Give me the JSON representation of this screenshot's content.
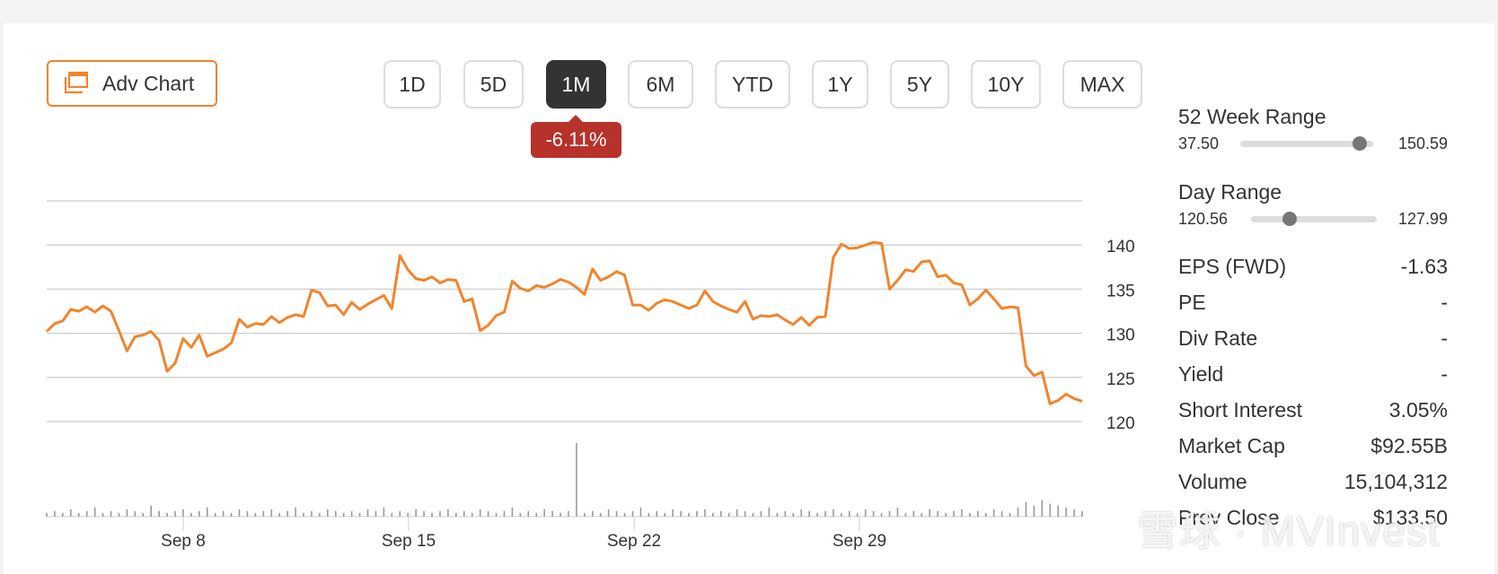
{
  "toolbar": {
    "adv_chart_label": "Adv Chart",
    "ranges": [
      "1D",
      "5D",
      "1M",
      "6M",
      "YTD",
      "1Y",
      "5Y",
      "10Y",
      "MAX"
    ],
    "active_range": "1M",
    "change_badge": "-6.11%"
  },
  "colors": {
    "accent": "#f0852d",
    "line": "#f0852d",
    "negative": "#b7322a",
    "active_button": "#333333",
    "grid": "#d3d3d3",
    "volume": "#9a9a9a"
  },
  "chart_data": {
    "type": "line",
    "title": "",
    "x_tick_labels": [
      "Sep 8",
      "Sep 15",
      "Sep 22",
      "Sep 29"
    ],
    "y_tick_labels": [
      "140",
      "135",
      "130",
      "125",
      "120"
    ],
    "ylim": [
      120,
      145
    ],
    "grid": true,
    "y_axis_position": "right",
    "series": [
      {
        "values": [
          130.2,
          131.1,
          131.4,
          132.7,
          132.5,
          133.0,
          132.4,
          133.1,
          132.5,
          130.3,
          128.0,
          129.6,
          129.8,
          130.2,
          129.2,
          125.7,
          126.6,
          129.4,
          128.4,
          129.8,
          127.4,
          127.8,
          128.2,
          128.9,
          131.6,
          130.7,
          131.1,
          131.0,
          131.9,
          131.2,
          131.8,
          132.1,
          131.9,
          134.9,
          134.6,
          133.1,
          133.2,
          132.1,
          133.5,
          132.7,
          133.3,
          133.8,
          134.3,
          132.8,
          138.8,
          137.2,
          136.2,
          136.0,
          136.4,
          135.7,
          136.1,
          136.0,
          133.6,
          133.9,
          130.3,
          130.9,
          132.0,
          132.4,
          135.9,
          135.1,
          134.8,
          135.4,
          135.2,
          135.6,
          136.1,
          135.8,
          135.2,
          134.4,
          137.3,
          136.0,
          136.4,
          137.0,
          136.6,
          133.2,
          133.2,
          132.6,
          133.4,
          133.8,
          133.6,
          133.2,
          132.8,
          133.2,
          134.8,
          133.6,
          133.1,
          132.7,
          132.4,
          133.6,
          131.6,
          132.0,
          131.9,
          132.1,
          131.5,
          131.0,
          131.8,
          130.9,
          131.8,
          131.9,
          138.6,
          140.1,
          139.6,
          139.7,
          140.0,
          140.3,
          140.2,
          135.0,
          136.0,
          137.2,
          137.0,
          138.1,
          138.2,
          136.4,
          136.6,
          135.7,
          135.5,
          133.2,
          133.9,
          134.9,
          133.9,
          132.8,
          133.0,
          132.9,
          126.3,
          125.2,
          125.6,
          122.0,
          122.4,
          123.1,
          122.6,
          122.3
        ]
      }
    ],
    "volume": {
      "spike_label_date": "Sep 22",
      "values": [
        2,
        3,
        2,
        4,
        2,
        3,
        5,
        2,
        3,
        2,
        4,
        3,
        2,
        6,
        3,
        2,
        3,
        4,
        2,
        3,
        5,
        2,
        3,
        2,
        4,
        3,
        2,
        3,
        4,
        2,
        3,
        5,
        2,
        3,
        2,
        4,
        3,
        2,
        3,
        2,
        4,
        3,
        5,
        2,
        3,
        2,
        4,
        3,
        2,
        3,
        4,
        2,
        3,
        2,
        4,
        3,
        2,
        3,
        5,
        2,
        3,
        2,
        4,
        3,
        2,
        3,
        40,
        2,
        3,
        2,
        4,
        3,
        2,
        3,
        5,
        2,
        3,
        2,
        4,
        3,
        2,
        3,
        4,
        2,
        3,
        2,
        4,
        3,
        2,
        3,
        5,
        2,
        3,
        2,
        4,
        3,
        2,
        3,
        4,
        2,
        3,
        2,
        4,
        3,
        2,
        3,
        5,
        2,
        3,
        2,
        4,
        3,
        2,
        3,
        4,
        2,
        3,
        2,
        4,
        3,
        2,
        5,
        8,
        6,
        9,
        7,
        6,
        5,
        4,
        3
      ]
    }
  },
  "stats": {
    "week52": {
      "title": "52 Week Range",
      "low": "37.50",
      "high": "150.59",
      "position": 0.9
    },
    "day": {
      "title": "Day Range",
      "low": "120.56",
      "high": "127.99",
      "position": 0.31
    },
    "rows": [
      {
        "label": "EPS (FWD)",
        "value": "-1.63"
      },
      {
        "label": "PE",
        "value": "-"
      },
      {
        "label": "Div Rate",
        "value": "-"
      },
      {
        "label": "Yield",
        "value": "-"
      },
      {
        "label": "Short Interest",
        "value": "3.05%"
      },
      {
        "label": "Market Cap",
        "value": "$92.55B"
      },
      {
        "label": "Volume",
        "value": "15,104,312"
      },
      {
        "label": "Prev Close",
        "value": "$133.50"
      }
    ]
  },
  "watermark": {
    "text": "雪球 · MVInvest",
    "icon": "snowball-logo-icon"
  }
}
